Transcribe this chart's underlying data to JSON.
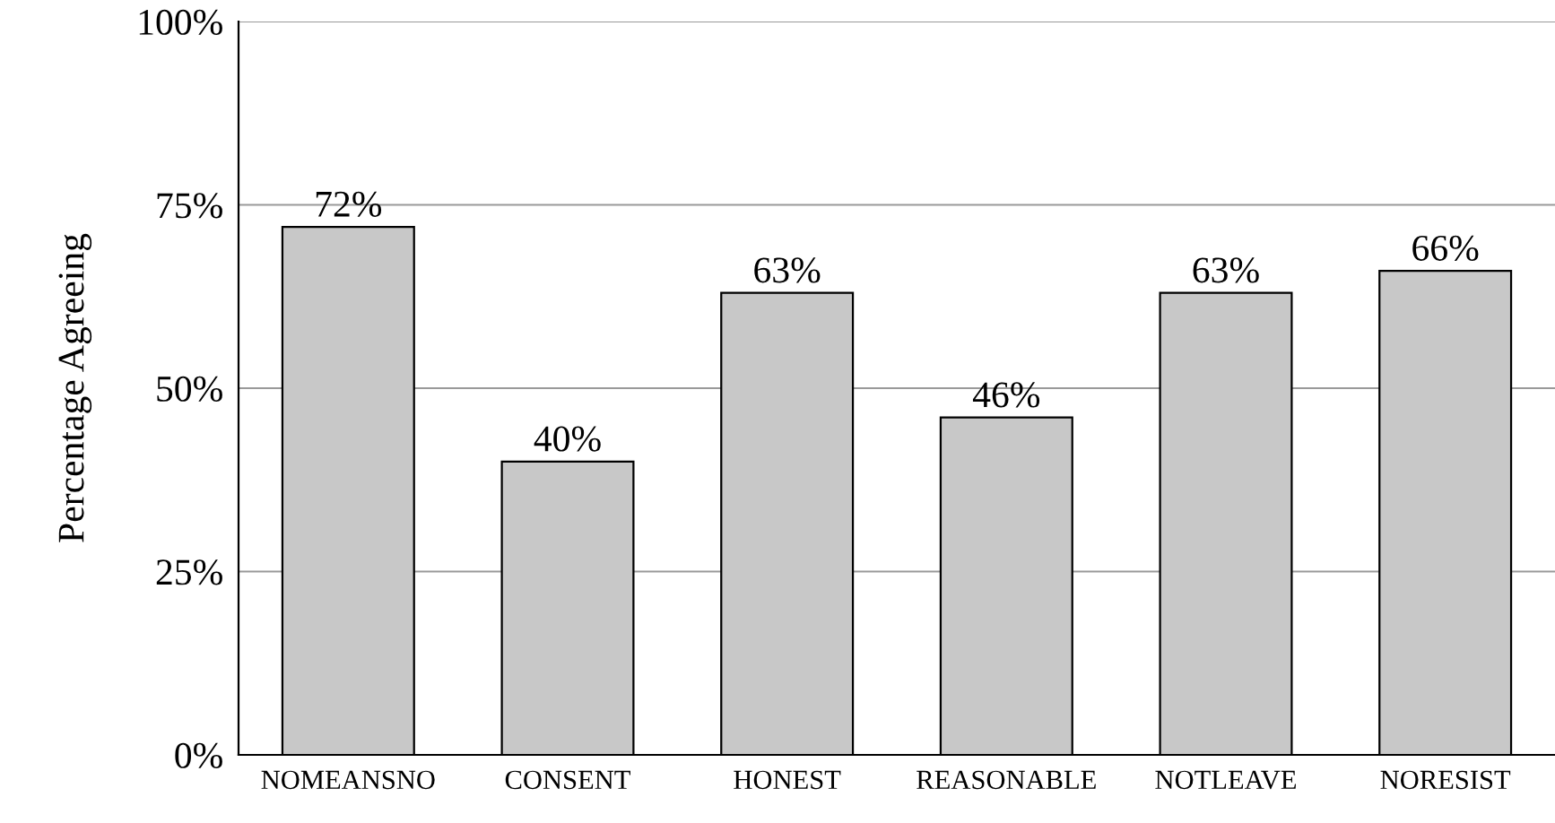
{
  "chart_data": {
    "type": "bar",
    "ylabel": "Percentage Agreeing",
    "categories": [
      "NOMEANSNO",
      "CONSENT",
      "HONEST",
      "REASONABLE",
      "NOTLEAVE",
      "NORESIST"
    ],
    "values": [
      72,
      40,
      63,
      46,
      63,
      66
    ],
    "value_labels": [
      "72%",
      "40%",
      "63%",
      "46%",
      "63%",
      "66%"
    ],
    "color": "#c8c8c8",
    "ylim": [
      0,
      100
    ],
    "yticks": [
      {
        "value": 0,
        "label": "0%"
      },
      {
        "value": 25,
        "label": "25%"
      },
      {
        "value": 50,
        "label": "50%"
      },
      {
        "value": 75,
        "label": "75%"
      },
      {
        "value": 100,
        "label": "100%"
      }
    ],
    "grid": "y",
    "legend": false
  }
}
